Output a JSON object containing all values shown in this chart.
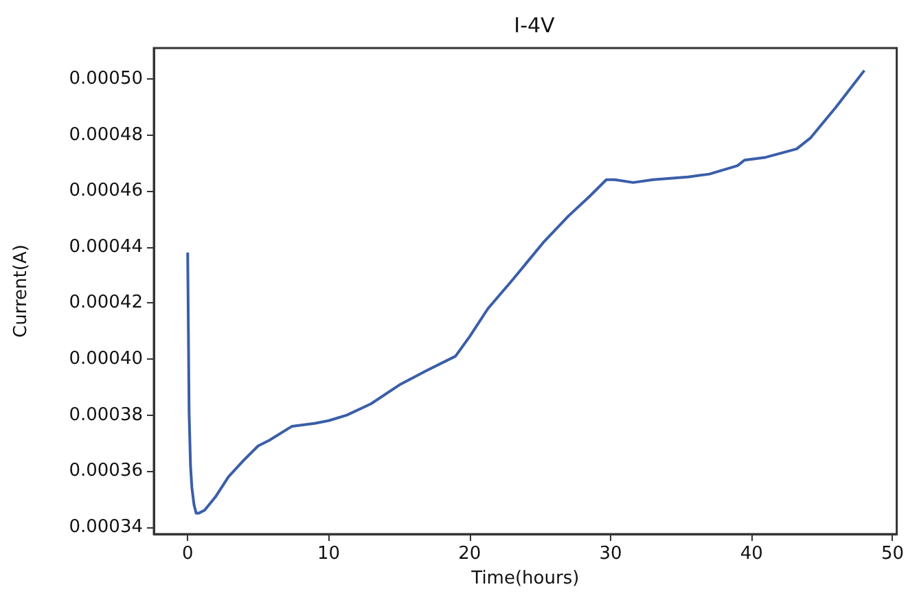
{
  "chart_data": {
    "type": "line",
    "title": "I-4V",
    "xlabel": "Time(hours)",
    "ylabel": "Current(A)",
    "series": [
      {
        "color": "#3a5ea8",
        "x": [
          0,
          0.05,
          0.1,
          0.2,
          0.3,
          0.45,
          0.6,
          0.8,
          1.2,
          2,
          2.9,
          4,
          5,
          5.8,
          7.4,
          9,
          10,
          11.3,
          13,
          15.1,
          17,
          19,
          20,
          21.3,
          23,
          25.3,
          27,
          28.5,
          29.7,
          30.3,
          31.6,
          33,
          35.5,
          37,
          39,
          39.5,
          41,
          43.2,
          44.2,
          46,
          48
        ],
        "values": [
          0.000438,
          0.00041,
          0.000381,
          0.000362,
          0.000354,
          0.000348,
          0.000345,
          0.000345,
          0.000346,
          0.000351,
          0.000358,
          0.000364,
          0.000369,
          0.000371,
          0.000376,
          0.000377,
          0.000378,
          0.00038,
          0.000384,
          0.000391,
          0.000396,
          0.000401,
          0.000408,
          0.000418,
          0.000428,
          0.000442,
          0.000451,
          0.000458,
          0.000464,
          0.000464,
          0.000463,
          0.000464,
          0.000465,
          0.000466,
          0.000469,
          0.000471,
          0.000472,
          0.000475,
          0.000479,
          0.00049,
          0.000503
        ]
      }
    ],
    "xlim": [
      -2.4,
      50.3
    ],
    "xticks": [
      0,
      10,
      20,
      30,
      40,
      50
    ],
    "ylim": [
      0.0003375,
      0.000511
    ],
    "yticks": [
      0.00034,
      0.00036,
      0.00038,
      {
        "value": 0.0004,
        "label": "0.00040"
      },
      0.00042,
      0.00044,
      0.00046,
      0.00048,
      {
        "value": 0.0005,
        "label": "0.00050"
      }
    ],
    "marker": "none",
    "line_style": "solid"
  }
}
